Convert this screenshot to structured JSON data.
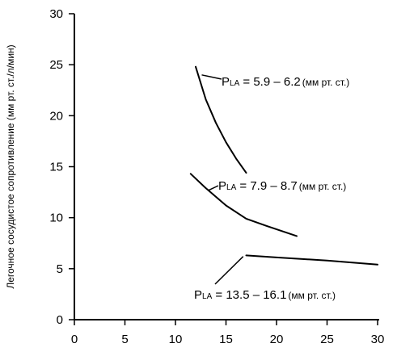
{
  "chart_data": {
    "type": "line",
    "title": "",
    "xlabel": "",
    "ylabel": "Легочное сосудистое сопротивление (мм рт. ст./л/мин)",
    "xlim": [
      0,
      30
    ],
    "ylim": [
      0,
      30
    ],
    "xticks": [
      0,
      5,
      10,
      15,
      20,
      25,
      30
    ],
    "yticks": [
      0,
      5,
      10,
      15,
      20,
      25,
      30
    ],
    "grid": false,
    "series": [
      {
        "label": "PLA = 5.9 – 6.2 (мм рт. ст.)",
        "x": [
          12,
          13,
          14,
          15,
          16,
          17
        ],
        "y": [
          24.8,
          21.6,
          19.3,
          17.4,
          15.8,
          14.4
        ]
      },
      {
        "label": "PLA = 7.9 – 8.7 (мм рт. ст.)",
        "x": [
          11.5,
          13,
          15,
          17,
          19,
          22
        ],
        "y": [
          14.3,
          12.9,
          11.2,
          9.9,
          9.2,
          8.2
        ]
      },
      {
        "label": "PLA = 13.5 – 16.1 (мм рт. ст.)",
        "x": [
          17,
          20,
          25,
          30
        ],
        "y": [
          6.3,
          6.1,
          5.8,
          5.4
        ]
      }
    ],
    "annotations": [
      {
        "main": "P",
        "sub": "LA",
        "text": " = 5.9 – 6.2",
        "unit": "(мм рт. ст.)"
      },
      {
        "main": "P",
        "sub": "LA",
        "text": " = 7.9 – 8.7",
        "unit": "(мм рт. ст.)"
      },
      {
        "main": "P",
        "sub": "LA",
        "text": " = 13.5 – 16.1",
        "unit": "(мм рт. ст.)"
      }
    ]
  }
}
